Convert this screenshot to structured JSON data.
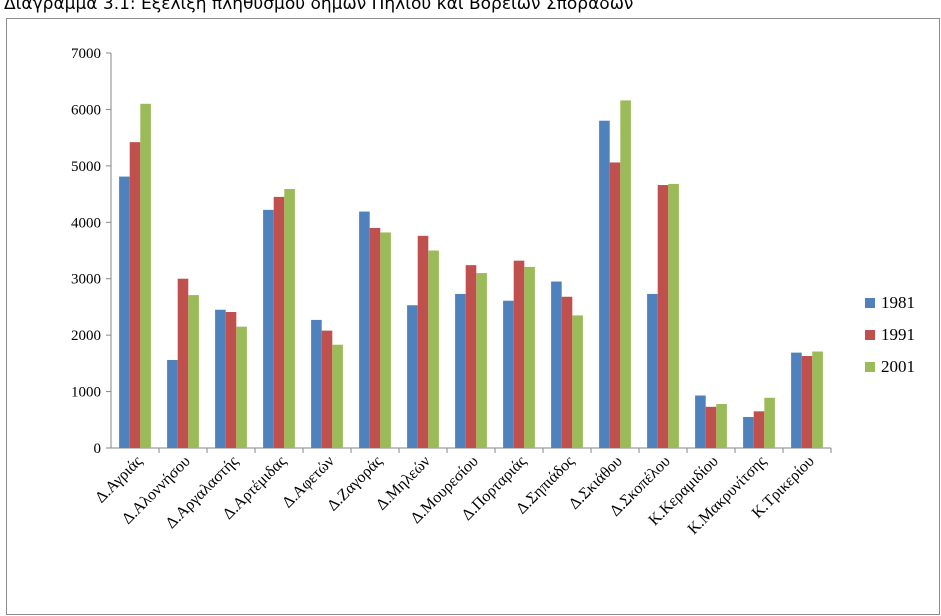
{
  "title": "Διάγραμμα 3.1: Εξέλιξη πληθυσμού δήμων Πηλίου και Βορείων Σποράδων",
  "chart_data": {
    "type": "bar",
    "categories": [
      "Δ.Αγριάς",
      "Δ.Αλοννήσου",
      "Δ.Αργαλαστής",
      "Δ.Αρτέμιδας",
      "Δ.Αφετών",
      "Δ.Ζαγοράς",
      "Δ.Μηλεών",
      "Δ.Μουρεσίου",
      "Δ.Πορταριάς",
      "Δ.Σηπιάδος",
      "Δ.Σκιάθου",
      "Δ.Σκοπέλου",
      "Κ.Κεραμιδίου",
      "Κ.Μακρυνίτσης",
      "Κ.Τρικερίου"
    ],
    "series": [
      {
        "name": "1981",
        "color": "#4f81bd",
        "values": [
          4810,
          1560,
          2450,
          4220,
          2270,
          4190,
          2530,
          2730,
          2610,
          2950,
          5800,
          2730,
          930,
          550,
          1690
        ]
      },
      {
        "name": "1991",
        "color": "#c0504d",
        "values": [
          5420,
          3000,
          2410,
          4450,
          2080,
          3900,
          3760,
          3240,
          3320,
          2680,
          5060,
          4660,
          730,
          650,
          1630
        ]
      },
      {
        "name": "2001",
        "color": "#9bbb59",
        "values": [
          6100,
          2710,
          2150,
          4590,
          1830,
          3820,
          3500,
          3100,
          3210,
          2350,
          6160,
          4680,
          780,
          890,
          1710
        ]
      }
    ],
    "ylim": [
      0,
      7000
    ],
    "yticks": [
      "0",
      "1000",
      "2000",
      "3000",
      "4000",
      "5000",
      "6000",
      "7000"
    ],
    "legend_position": "right",
    "grid": false
  }
}
